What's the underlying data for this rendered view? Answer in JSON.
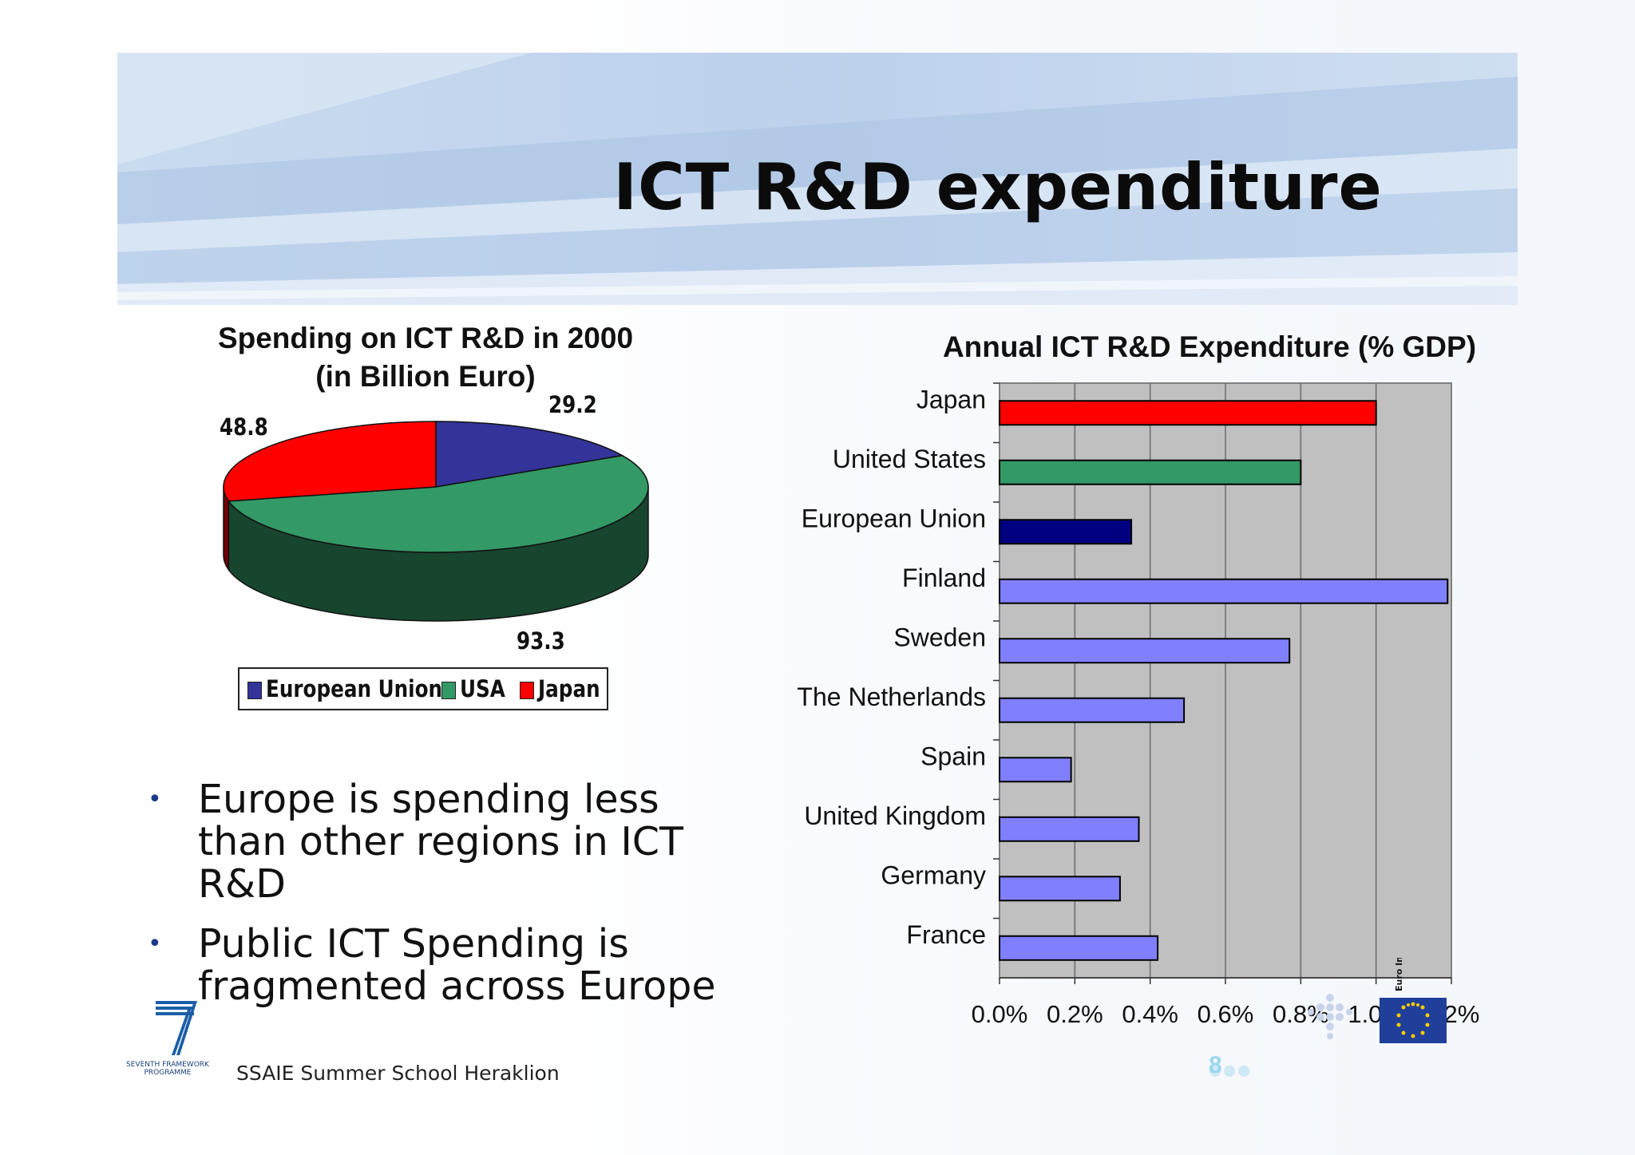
{
  "slide": {
    "title": "ICT R&D expenditure",
    "footer": "SSAIE Summer School Heraklion",
    "page_number": "8",
    "fp7_logo_text": "SEVENTH FRAMEWORK PROGRAMME",
    "euro_info_text": "Euro Info"
  },
  "bullets": [
    "Europe is spending less than other regions in ICT R&D",
    "Public ICT Spending is fragmented across Europe"
  ],
  "chart_data": [
    {
      "type": "pie",
      "title": "Spending on ICT R&D in 2000 (in Billion Euro)",
      "title_lines": [
        "Spending on ICT R&D in 2000",
        "(in Billion Euro)"
      ],
      "categories": [
        "European Union",
        "USA",
        "Japan"
      ],
      "values": [
        29.2,
        93.3,
        48.8
      ],
      "value_labels": [
        "29.2",
        "93.3",
        "48.8"
      ],
      "colors": [
        "#333399",
        "#339966",
        "#ff0000"
      ],
      "legend_position": "bottom"
    },
    {
      "type": "bar",
      "orientation": "horizontal",
      "title": "Annual ICT R&D Expenditure (% GDP)",
      "categories": [
        "Japan",
        "United States",
        "European Union",
        "Finland",
        "Sweden",
        "The Netherlands",
        "Spain",
        "United Kingdom",
        "Germany",
        "France"
      ],
      "values": [
        1.0,
        0.8,
        0.35,
        1.19,
        0.77,
        0.49,
        0.19,
        0.37,
        0.32,
        0.42
      ],
      "colors": [
        "#ff0000",
        "#339966",
        "#000080",
        "#8080ff",
        "#8080ff",
        "#8080ff",
        "#8080ff",
        "#8080ff",
        "#8080ff",
        "#8080ff"
      ],
      "x_ticks": [
        "0.0%",
        "0.2%",
        "0.4%",
        "0.6%",
        "0.8%",
        "1.0%",
        "1.2%"
      ],
      "xlim": [
        0,
        1.2
      ],
      "grid": true,
      "plot_background": "#c0c0c0"
    }
  ]
}
